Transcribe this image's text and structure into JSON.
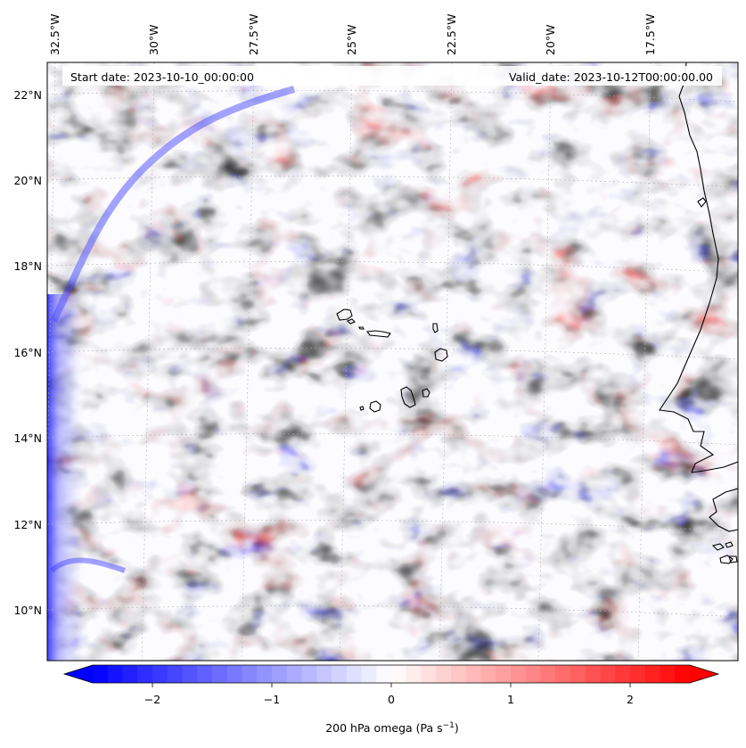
{
  "map": {
    "start_date": "Start date: 2023-10-10_00:00:00",
    "valid_date": "Valid_date: 2023-10-12T00:00:00.00",
    "lon_labels": [
      "32.5°W",
      "30°W",
      "27.5°W",
      "25°W",
      "22.5°W",
      "20°W",
      "17.5°W"
    ],
    "lat_labels": [
      "22°N",
      "20°N",
      "18°N",
      "16°N",
      "14°N",
      "12°N",
      "10°N"
    ],
    "colors": {
      "negative": "#0000ff",
      "positive": "#ff0000",
      "neutral": "#ffffff",
      "coastline": "#000000",
      "gridline": "#b0b0b0"
    }
  },
  "colorbar": {
    "label": "200 hPa omega (Pa s",
    "label_sup": "−1",
    "label_end": ")",
    "ticks": [
      "−2",
      "−1",
      "0",
      "1",
      "2"
    ],
    "tick_values": [
      -2,
      -1,
      0,
      1,
      2
    ],
    "range": [
      -2.5,
      2.5
    ],
    "levels": 40
  }
}
